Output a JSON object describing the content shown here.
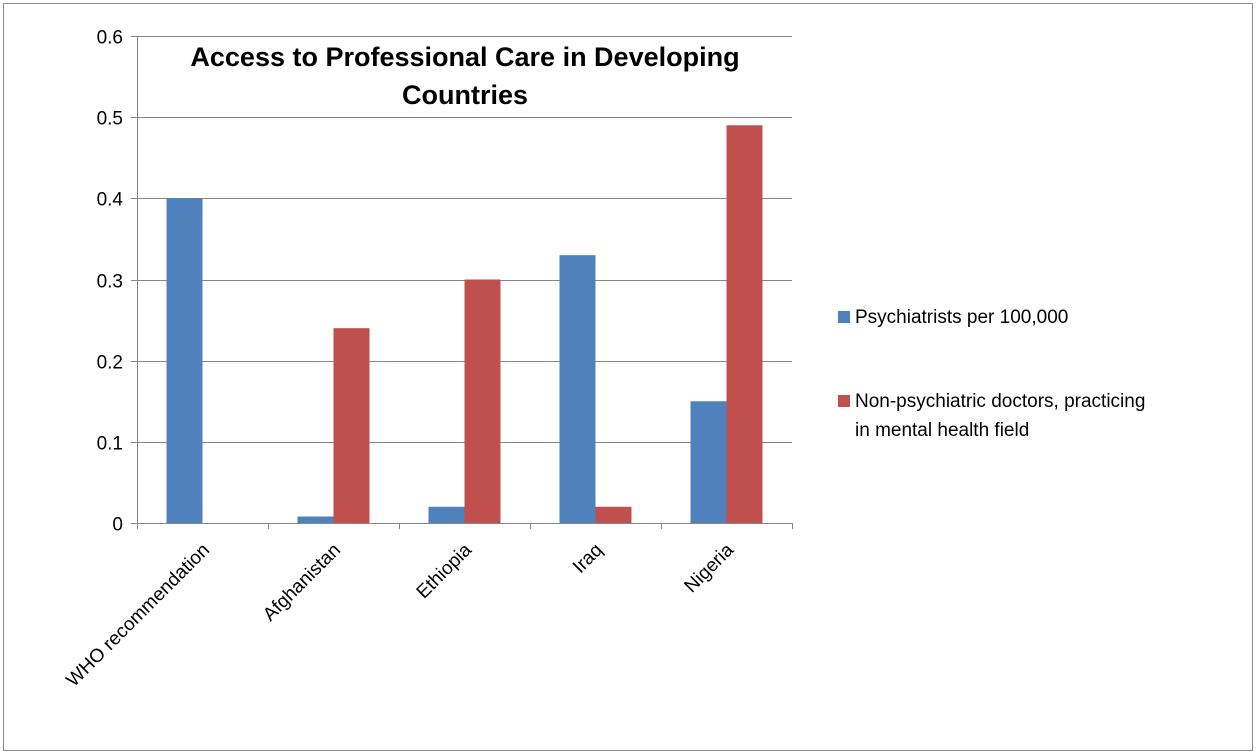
{
  "chart_data": {
    "type": "bar",
    "title_lines": [
      "Access to Professional Care in Developing",
      "Countries"
    ],
    "categories": [
      "WHO recommendation",
      "Afghanistan",
      "Ethiopia",
      "Iraq",
      "Nigeria"
    ],
    "series": [
      {
        "name": "Psychiatrists per 100,000",
        "legend_lines": [
          "Psychiatrists per 100,000"
        ],
        "color": "#4f81bd",
        "values": [
          0.4,
          0.008,
          0.02,
          0.33,
          0.15
        ]
      },
      {
        "name": "Non-psychiatric doctors, practicing in mental health field",
        "legend_lines": [
          "Non-psychiatric doctors, practicing",
          "in mental health field"
        ],
        "color": "#c0504d",
        "values": [
          0,
          0.24,
          0.3,
          0.02,
          0.49
        ]
      }
    ],
    "ylim": [
      0,
      0.6
    ],
    "yticks": [
      "0",
      "0.1",
      "0.2",
      "0.3",
      "0.4",
      "0.5",
      "0.6"
    ],
    "grid": true,
    "legend_position": "right"
  }
}
